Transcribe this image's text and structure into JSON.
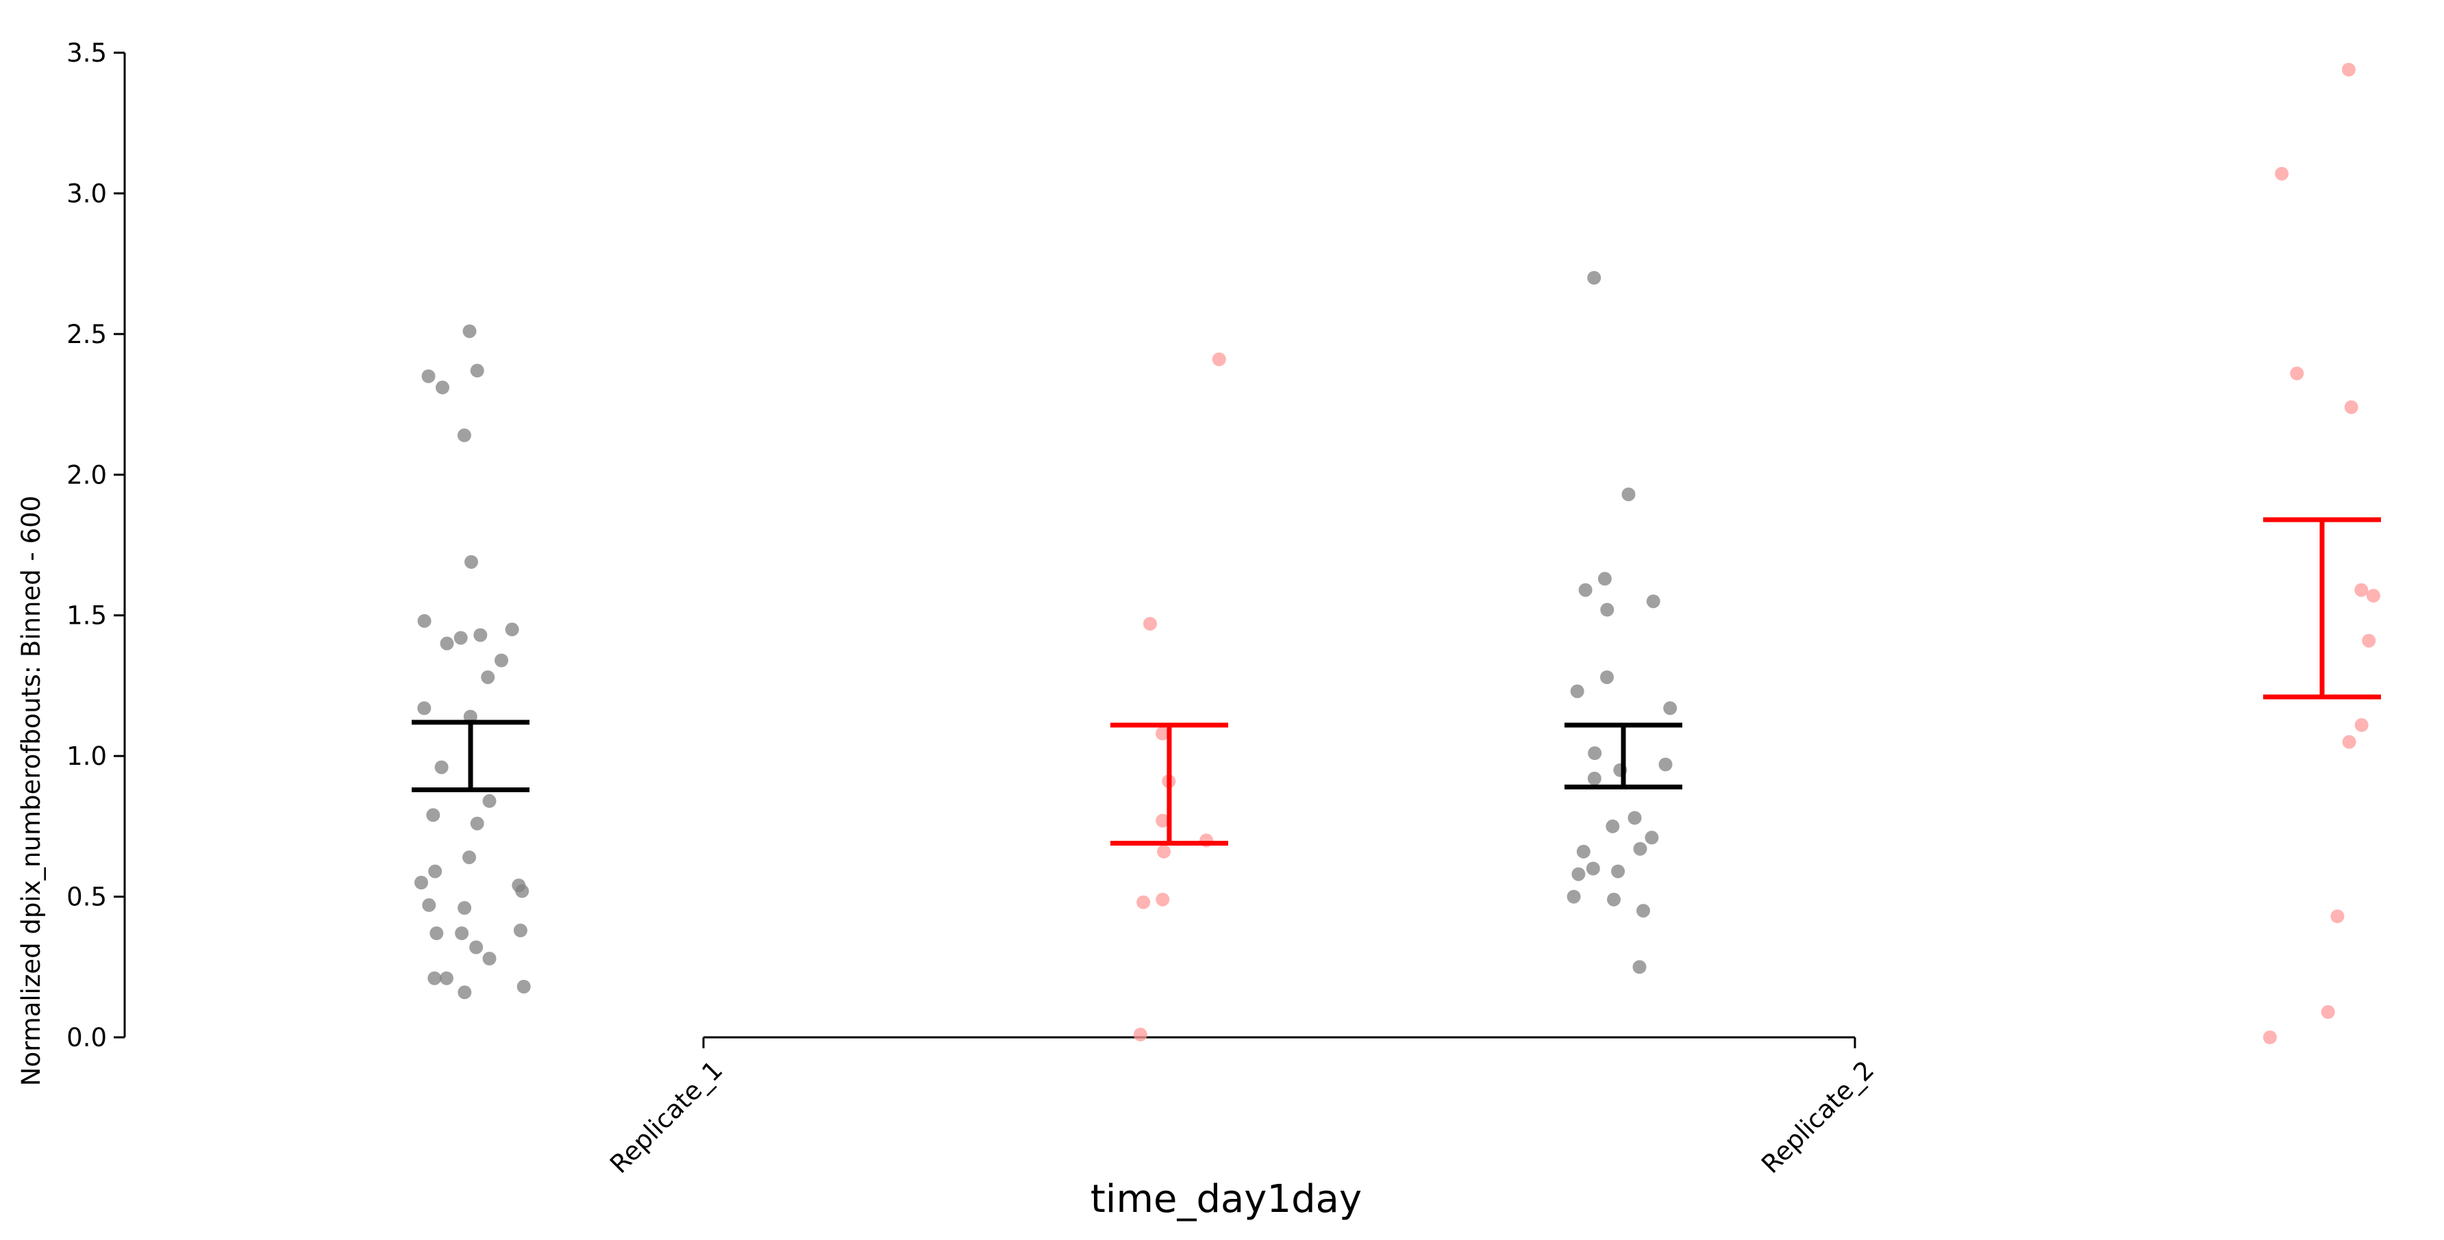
{
  "chart_data": {
    "type": "scatter",
    "xlabel": "time_day1day",
    "ylabel": "Normalized dpix_numberofbouts: Binned - 600",
    "ylim": [
      0,
      3.5
    ],
    "yticks": [
      "0.0",
      "0.5",
      "1.0",
      "1.5",
      "2.0",
      "2.5",
      "3.0",
      "3.5"
    ],
    "categories": [
      "Replicate_1",
      "Replicate_2"
    ],
    "grid": false,
    "legend": "none",
    "series": [
      {
        "group": "black",
        "color": "#000000",
        "point_color": "#808080",
        "points": [
          [
            1,
            2.51
          ],
          [
            1,
            2.37
          ],
          [
            1,
            2.35
          ],
          [
            1,
            2.31
          ],
          [
            1,
            2.14
          ],
          [
            1,
            1.69
          ],
          [
            1,
            1.48
          ],
          [
            1,
            1.45
          ],
          [
            1,
            1.43
          ],
          [
            1,
            1.42
          ],
          [
            1,
            1.4
          ],
          [
            1,
            1.34
          ],
          [
            1,
            1.28
          ],
          [
            1,
            1.17
          ],
          [
            1,
            1.14
          ],
          [
            1,
            0.96
          ],
          [
            1,
            0.84
          ],
          [
            1,
            0.79
          ],
          [
            1,
            0.76
          ],
          [
            1,
            0.64
          ],
          [
            1,
            0.59
          ],
          [
            1,
            0.55
          ],
          [
            1,
            0.54
          ],
          [
            1,
            0.52
          ],
          [
            1,
            0.47
          ],
          [
            1,
            0.46
          ],
          [
            1,
            0.38
          ],
          [
            1,
            0.37
          ],
          [
            1,
            0.37
          ],
          [
            1,
            0.32
          ],
          [
            1,
            0.28
          ],
          [
            1,
            0.21
          ],
          [
            1,
            0.21
          ],
          [
            1,
            0.18
          ],
          [
            1,
            0.16
          ],
          [
            2,
            2.7
          ],
          [
            2,
            1.93
          ],
          [
            2,
            1.63
          ],
          [
            2,
            1.59
          ],
          [
            2,
            1.55
          ],
          [
            2,
            1.52
          ],
          [
            2,
            1.28
          ],
          [
            2,
            1.23
          ],
          [
            2,
            1.17
          ],
          [
            2,
            1.01
          ],
          [
            2,
            0.97
          ],
          [
            2,
            0.95
          ],
          [
            2,
            0.92
          ],
          [
            2,
            0.78
          ],
          [
            2,
            0.75
          ],
          [
            2,
            0.71
          ],
          [
            2,
            0.67
          ],
          [
            2,
            0.66
          ],
          [
            2,
            0.6
          ],
          [
            2,
            0.59
          ],
          [
            2,
            0.58
          ],
          [
            2,
            0.5
          ],
          [
            2,
            0.49
          ],
          [
            2,
            0.45
          ],
          [
            2,
            0.25
          ]
        ],
        "error_bars": [
          {
            "category": "Replicate_1",
            "low": 0.88,
            "high": 1.12
          },
          {
            "category": "Replicate_2",
            "low": 0.89,
            "high": 1.11
          }
        ]
      },
      {
        "group": "red",
        "color": "#ff0000",
        "point_color": "#ff9999",
        "points": [
          [
            1,
            2.41
          ],
          [
            1,
            1.47
          ],
          [
            1,
            1.08
          ],
          [
            1,
            0.91
          ],
          [
            1,
            0.77
          ],
          [
            1,
            0.7
          ],
          [
            1,
            0.66
          ],
          [
            1,
            0.49
          ],
          [
            1,
            0.48
          ],
          [
            1,
            0.01
          ],
          [
            2,
            3.44
          ],
          [
            2,
            3.07
          ],
          [
            2,
            2.36
          ],
          [
            2,
            2.24
          ],
          [
            2,
            1.59
          ],
          [
            2,
            1.57
          ],
          [
            2,
            1.41
          ],
          [
            2,
            1.11
          ],
          [
            2,
            1.05
          ],
          [
            2,
            0.43
          ],
          [
            2,
            0.09
          ],
          [
            2,
            0.0
          ]
        ],
        "error_bars": [
          {
            "category": "Replicate_1",
            "low": 0.69,
            "high": 1.11
          },
          {
            "category": "Replicate_2",
            "low": 1.21,
            "high": 1.84
          }
        ]
      }
    ]
  }
}
